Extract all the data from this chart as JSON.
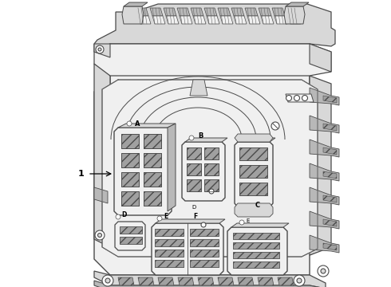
{
  "background_color": "#ffffff",
  "line_color": "#4a4a4a",
  "line_color2": "#666666",
  "fill_light": "#f0f0f0",
  "fill_mid": "#d8d8d8",
  "fill_dark": "#b8b8b8",
  "fill_darker": "#a0a0a0",
  "hatch_fc": "#c8c8c8",
  "label_1": "1",
  "label_A": "A",
  "label_B": "B",
  "label_C": "C",
  "label_D": "D",
  "label_E": "E",
  "label_F": "F",
  "figsize": [
    4.9,
    3.6
  ],
  "dpi": 100
}
